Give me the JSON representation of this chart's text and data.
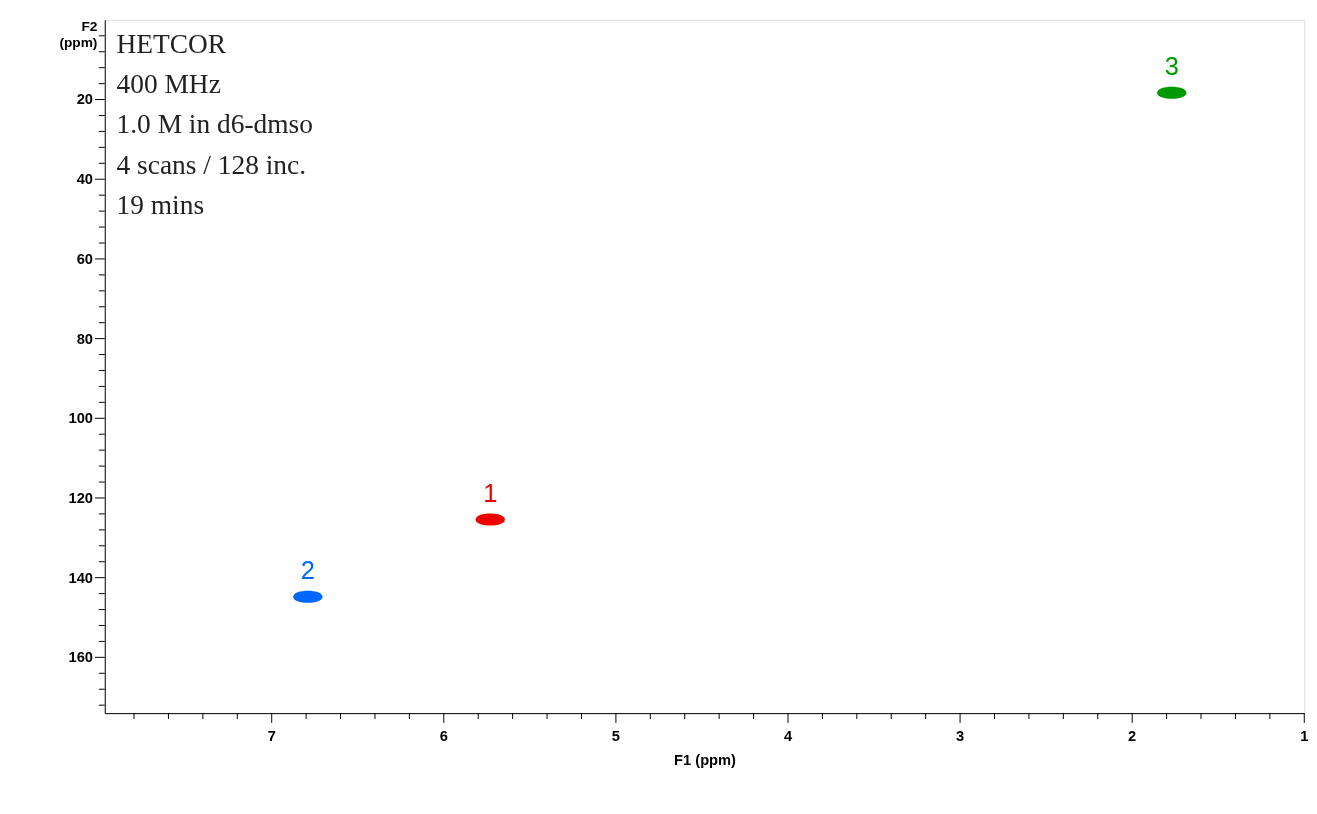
{
  "chart_data": {
    "type": "scatter",
    "xlabel": "F1 (ppm)",
    "ylabel": "F2 (ppm)",
    "xlim": [
      7.97,
      1
    ],
    "ylim": [
      174,
      0
    ],
    "xticks": [
      {
        "value": 7.8,
        "label": null
      },
      {
        "value": 7.6,
        "label": null
      },
      {
        "value": 7.4,
        "label": null
      },
      {
        "value": 7.2,
        "label": null
      },
      7,
      {
        "value": 6.8,
        "label": null
      },
      {
        "value": 6.6,
        "label": null
      },
      {
        "value": 6.4,
        "label": null
      },
      {
        "value": 6.2,
        "label": null
      },
      6,
      {
        "value": 5.8,
        "label": null
      },
      {
        "value": 5.6,
        "label": null
      },
      {
        "value": 5.4,
        "label": null
      },
      {
        "value": 5.2,
        "label": null
      },
      5,
      {
        "value": 4.8,
        "label": null
      },
      {
        "value": 4.6,
        "label": null
      },
      {
        "value": 4.4,
        "label": null
      },
      {
        "value": 4.2,
        "label": null
      },
      4,
      {
        "value": 3.8,
        "label": null
      },
      {
        "value": 3.6,
        "label": null
      },
      {
        "value": 3.4,
        "label": null
      },
      {
        "value": 3.2,
        "label": null
      },
      3,
      {
        "value": 2.8,
        "label": null
      },
      {
        "value": 2.6,
        "label": null
      },
      {
        "value": 2.4,
        "label": null
      },
      {
        "value": 2.2,
        "label": null
      },
      2,
      {
        "value": 1.8,
        "label": null
      },
      {
        "value": 1.6,
        "label": null
      },
      {
        "value": 1.4,
        "label": null
      },
      {
        "value": 1.2,
        "label": null
      },
      1
    ],
    "yticks": [
      {
        "value": 4,
        "label": null
      },
      {
        "value": 8,
        "label": null
      },
      {
        "value": 12,
        "label": null
      },
      {
        "value": 16,
        "label": null
      },
      20,
      {
        "value": 24,
        "label": null
      },
      {
        "value": 28,
        "label": null
      },
      {
        "value": 32,
        "label": null
      },
      {
        "value": 36,
        "label": null
      },
      40,
      {
        "value": 44,
        "label": null
      },
      {
        "value": 48,
        "label": null
      },
      {
        "value": 52,
        "label": null
      },
      {
        "value": 56,
        "label": null
      },
      60,
      {
        "value": 64,
        "label": null
      },
      {
        "value": 68,
        "label": null
      },
      {
        "value": 72,
        "label": null
      },
      {
        "value": 76,
        "label": null
      },
      80,
      {
        "value": 84,
        "label": null
      },
      {
        "value": 88,
        "label": null
      },
      {
        "value": 92,
        "label": null
      },
      {
        "value": 96,
        "label": null
      },
      100,
      {
        "value": 104,
        "label": null
      },
      {
        "value": 108,
        "label": null
      },
      {
        "value": 112,
        "label": null
      },
      {
        "value": 116,
        "label": null
      },
      120,
      {
        "value": 124,
        "label": null
      },
      {
        "value": 128,
        "label": null
      },
      {
        "value": 132,
        "label": null
      },
      {
        "value": 136,
        "label": null
      },
      140,
      {
        "value": 144,
        "label": null
      },
      {
        "value": 148,
        "label": null
      },
      {
        "value": 152,
        "label": null
      },
      {
        "value": 156,
        "label": null
      },
      160,
      {
        "value": 164,
        "label": null
      },
      {
        "value": 168,
        "label": null
      },
      {
        "value": 172,
        "label": null
      }
    ],
    "grid": false,
    "legend": false,
    "series": [
      {
        "name": "1",
        "color": "#ee0000",
        "x": [
          5.73
        ],
        "values": [
          125.4
        ]
      },
      {
        "name": "2",
        "color": "#0066ff",
        "x": [
          6.79
        ],
        "values": [
          144.8
        ]
      },
      {
        "name": "3",
        "color": "#009900",
        "x": [
          1.77
        ],
        "values": [
          18.3
        ]
      }
    ],
    "annotations": [
      "HETCOR",
      "400 MHz",
      "1.0 M in d6-dmso",
      "4 scans / 128 inc.",
      "19 mins"
    ]
  }
}
